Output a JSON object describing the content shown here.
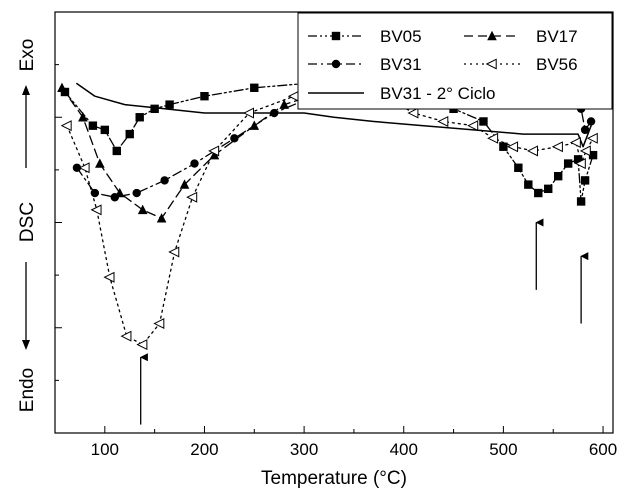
{
  "chart_data": {
    "type": "line",
    "title": "",
    "xlabel": "Temperature (°C)",
    "ylabel": "DSC",
    "y_direction_labels": {
      "top": "Exo",
      "bottom": "Endo"
    },
    "xlim": [
      50,
      610
    ],
    "ylim": [
      0,
      100
    ],
    "y_ticks_labeled": false,
    "xticks": [
      100,
      200,
      300,
      400,
      500,
      600
    ],
    "xtick_labels": [
      "100",
      "200",
      "300",
      "400",
      "500",
      "600"
    ],
    "grid": false,
    "legend_position": "top-right",
    "series": [
      {
        "name": "BV05",
        "color": "#000000",
        "marker": "square",
        "dash": "dash-dot-dot",
        "points": [
          [
            60,
            81
          ],
          [
            88,
            73
          ],
          [
            100,
            72
          ],
          [
            112,
            67
          ],
          [
            125,
            71
          ],
          [
            135,
            75
          ],
          [
            150,
            77
          ],
          [
            165,
            78
          ],
          [
            200,
            80
          ],
          [
            250,
            82
          ],
          [
            300,
            83
          ],
          [
            350,
            85
          ],
          [
            380,
            84
          ],
          [
            400,
            82
          ],
          [
            420,
            80
          ],
          [
            450,
            77
          ],
          [
            480,
            74
          ],
          [
            500,
            68
          ],
          [
            515,
            63
          ],
          [
            525,
            59
          ],
          [
            535,
            57
          ],
          [
            545,
            58
          ],
          [
            555,
            61
          ],
          [
            565,
            64
          ],
          [
            575,
            65
          ],
          [
            578,
            55
          ],
          [
            582,
            60
          ],
          [
            590,
            66
          ]
        ]
      },
      {
        "name": "BV17",
        "color": "#000000",
        "marker": "triangle-up",
        "dash": "dashed",
        "points": [
          [
            57,
            82
          ],
          [
            78,
            75
          ],
          [
            95,
            64
          ],
          [
            115,
            57
          ],
          [
            138,
            53
          ],
          [
            157,
            51
          ],
          [
            180,
            59
          ],
          [
            210,
            66
          ],
          [
            250,
            73
          ],
          [
            280,
            78
          ],
          [
            320,
            81
          ],
          [
            350,
            83
          ],
          [
            380,
            84
          ],
          [
            400,
            84
          ],
          [
            430,
            83
          ],
          [
            450,
            83
          ],
          [
            480,
            83
          ],
          [
            500,
            82
          ],
          [
            530,
            81
          ],
          [
            560,
            80
          ],
          [
            575,
            82
          ],
          [
            588,
            83
          ]
        ]
      },
      {
        "name": "BV31",
        "color": "#000000",
        "marker": "circle",
        "dash": "dash-dot",
        "points": [
          [
            72,
            63
          ],
          [
            90,
            57
          ],
          [
            110,
            56
          ],
          [
            132,
            57
          ],
          [
            160,
            60
          ],
          [
            190,
            64
          ],
          [
            230,
            70
          ],
          [
            270,
            76
          ],
          [
            300,
            79
          ],
          [
            330,
            81
          ],
          [
            355,
            83
          ],
          [
            380,
            82
          ],
          [
            420,
            81
          ],
          [
            450,
            81
          ],
          [
            480,
            80
          ],
          [
            510,
            79
          ],
          [
            540,
            78
          ],
          [
            560,
            78
          ],
          [
            578,
            77
          ],
          [
            582,
            72
          ],
          [
            588,
            74
          ]
        ]
      },
      {
        "name": "BV56",
        "color": "#000000",
        "marker": "triangle-left",
        "dash": "dotted",
        "points": [
          [
            62,
            73
          ],
          [
            80,
            63
          ],
          [
            92,
            53
          ],
          [
            105,
            37
          ],
          [
            122,
            23
          ],
          [
            138,
            21
          ],
          [
            155,
            26
          ],
          [
            170,
            43
          ],
          [
            188,
            56
          ],
          [
            210,
            67
          ],
          [
            245,
            76
          ],
          [
            290,
            80
          ],
          [
            330,
            82
          ],
          [
            355,
            83
          ],
          [
            380,
            80
          ],
          [
            410,
            76
          ],
          [
            440,
            74
          ],
          [
            470,
            73
          ],
          [
            490,
            70
          ],
          [
            510,
            68
          ],
          [
            530,
            67
          ],
          [
            555,
            68
          ],
          [
            573,
            69
          ],
          [
            578,
            64
          ],
          [
            583,
            67
          ],
          [
            590,
            70
          ]
        ]
      },
      {
        "name": "BV31 - 2° Ciclo",
        "color": "#000000",
        "marker": "none",
        "dash": "solid",
        "points": [
          [
            72,
            83
          ],
          [
            90,
            80
          ],
          [
            120,
            78
          ],
          [
            160,
            77
          ],
          [
            200,
            76
          ],
          [
            240,
            76
          ],
          [
            280,
            76
          ],
          [
            300,
            76
          ],
          [
            330,
            75
          ],
          [
            370,
            74
          ],
          [
            420,
            73
          ],
          [
            470,
            72
          ],
          [
            520,
            71
          ],
          [
            560,
            71
          ],
          [
            575,
            71
          ],
          [
            580,
            68
          ],
          [
            588,
            73
          ]
        ]
      }
    ],
    "annotations": [
      {
        "type": "arrow-up",
        "x": 136,
        "y_from": 2,
        "y_to": 18
      },
      {
        "type": "arrow-up",
        "x": 533,
        "y_from": 34,
        "y_to": 50
      },
      {
        "type": "arrow-up",
        "x": 578,
        "y_from": 26,
        "y_to": 42
      }
    ]
  }
}
